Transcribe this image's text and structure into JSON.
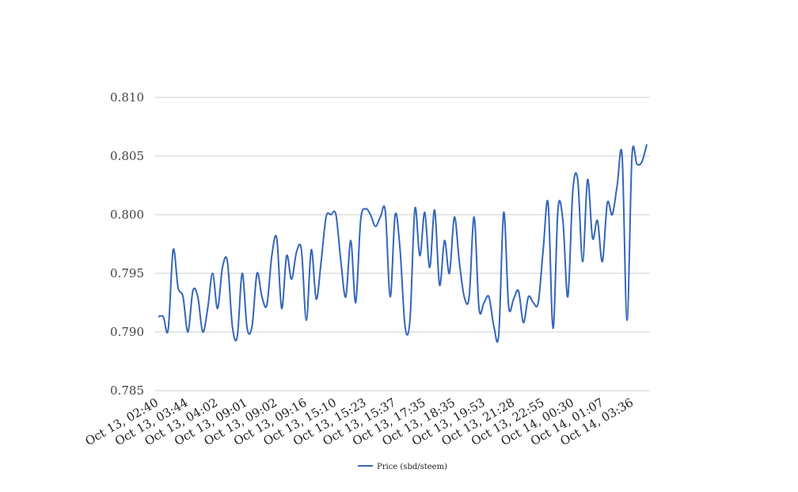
{
  "chart_data": {
    "type": "line",
    "title": "",
    "xlabel": "",
    "ylabel": "",
    "ylim": [
      0.785,
      0.81
    ],
    "grid": true,
    "legend_position": "bottom-center",
    "yticks": [
      "0.785",
      "0.790",
      "0.795",
      "0.800",
      "0.805",
      "0.810"
    ],
    "xtick_labels": [
      "Oct 13, 02:40",
      "Oct 13, 03:44",
      "Oct 13, 04:02",
      "Oct 13, 09:01",
      "Oct 13, 09:02",
      "Oct 13, 09:16",
      "Oct 13, 15:10",
      "Oct 13, 15:23",
      "Oct 13, 15:37",
      "Oct 13, 17:35",
      "Oct 13, 18:35",
      "Oct 13, 19:53",
      "Oct 13, 21:28",
      "Oct 13, 22:55",
      "Oct 14, 00:30",
      "Oct 14, 01:07",
      "Oct 14, 03:36"
    ],
    "series": [
      {
        "name": "Price (sbd/steem)",
        "color": "#3366bb",
        "values": [
          0.7913,
          0.7913,
          0.7902,
          0.797,
          0.7938,
          0.793,
          0.79,
          0.7935,
          0.793,
          0.79,
          0.792,
          0.795,
          0.792,
          0.7955,
          0.796,
          0.7905,
          0.7896,
          0.795,
          0.7903,
          0.7905,
          0.795,
          0.793,
          0.7923,
          0.7965,
          0.798,
          0.792,
          0.7965,
          0.7945,
          0.7968,
          0.797,
          0.791,
          0.797,
          0.7928,
          0.796,
          0.7998,
          0.8,
          0.8,
          0.796,
          0.793,
          0.7978,
          0.7925,
          0.7995,
          0.8005,
          0.8,
          0.799,
          0.7998,
          0.8003,
          0.793,
          0.8,
          0.797,
          0.7905,
          0.791,
          0.8005,
          0.7965,
          0.8002,
          0.7955,
          0.8004,
          0.794,
          0.7978,
          0.795,
          0.7998,
          0.796,
          0.793,
          0.793,
          0.7998,
          0.792,
          0.7925,
          0.793,
          0.7905,
          0.7898,
          0.8002,
          0.7922,
          0.7928,
          0.7935,
          0.7908,
          0.793,
          0.7925,
          0.7925,
          0.797,
          0.801,
          0.7903,
          0.8005,
          0.7995,
          0.793,
          0.802,
          0.803,
          0.796,
          0.803,
          0.798,
          0.7995,
          0.796,
          0.801,
          0.8,
          0.8025,
          0.805,
          0.791,
          0.805,
          0.8043,
          0.8045,
          0.806
        ]
      }
    ]
  }
}
